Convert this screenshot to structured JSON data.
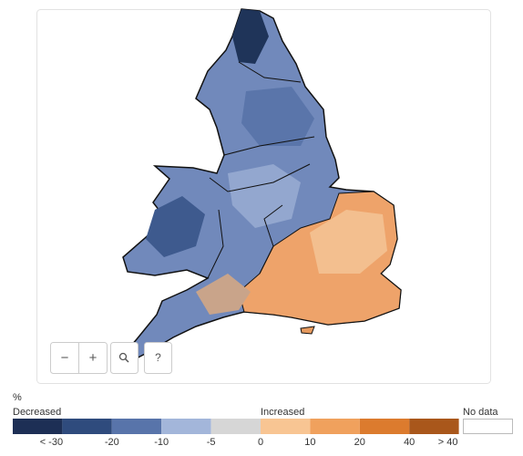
{
  "legend": {
    "unit": "%",
    "low_label": "Decreased",
    "high_label": "Increased",
    "no_data_label": "No data",
    "no_data_color": "#ffffff",
    "bins": [
      {
        "color": "#1d2f55",
        "label": "< -30"
      },
      {
        "color": "#2f4b7d",
        "label": "-20"
      },
      {
        "color": "#5874aa",
        "label": "-10"
      },
      {
        "color": "#a3b6da",
        "label": "-5"
      },
      {
        "color": "#d6d6d6",
        "label": "0"
      },
      {
        "color": "#f8c593",
        "label": "10"
      },
      {
        "color": "#f0a15d",
        "label": "20"
      },
      {
        "color": "#dc7b2e",
        "label": "40"
      },
      {
        "color": "#a9571b",
        "label": "> 40"
      }
    ]
  },
  "controls": {
    "zoom_out": "−",
    "zoom_in": "+",
    "help": "?"
  }
}
